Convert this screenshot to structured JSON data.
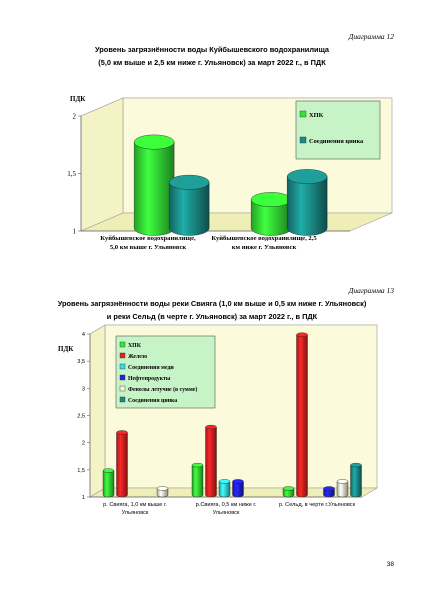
{
  "page_number": "38",
  "chart_data": [
    {
      "type": "bar",
      "label": "Диаграмма 12",
      "title_lines": [
        "Уровень загрязнённости воды Куйбышевского водохранилища",
        "(5,0 км выше и 2,5 км ниже г. Ульяновск) за март 2022 г., в ПДК"
      ],
      "ylabel": "ПДК",
      "ylim": [
        1,
        2
      ],
      "yticks": [
        "1",
        "1,5",
        "2"
      ],
      "categories": [
        [
          "Куйбышевское водохранилище,",
          "5,0 км выше г. Ульяновск"
        ],
        [
          "Куйбышевское водохранилище, 2,5",
          "км ниже г. Ульяновск"
        ]
      ],
      "series": [
        {
          "name": "ХПК",
          "color": "#33e633",
          "values": [
            1.75,
            1.25
          ]
        },
        {
          "name": "Соединения цинка",
          "color": "#1a8a86",
          "values": [
            1.4,
            1.45
          ]
        }
      ],
      "legend_position": "top-right",
      "grid": false
    },
    {
      "type": "bar",
      "label": "Диаграмма 13",
      "title_lines": [
        "Уровень загрязнённости воды реки Свияга (1,0 км выше и 0,5 км ниже г. Ульяновск)",
        "и реки Сельд (в черте г. Ульяновск) за март 2022 г., в ПДК"
      ],
      "ylabel": "ПДК",
      "ylim": [
        1,
        4
      ],
      "yticks": [
        "1",
        "1,5",
        "2",
        "2,5",
        "3",
        "3,5",
        "4"
      ],
      "categories": [
        [
          "р. Свияга, 1,0 км выше г.",
          "Ульяновск"
        ],
        [
          "р.Свияга, 0,5 км ниже    г.",
          "Ульяновск"
        ],
        [
          "р. Сельд, в черте г.Ульяновск",
          ""
        ]
      ],
      "series": [
        {
          "name": "ХПК",
          "color": "#33e633",
          "values": [
            1.45,
            1.55,
            1.12
          ]
        },
        {
          "name": "Железо",
          "color": "#e62020",
          "values": [
            2.15,
            2.25,
            3.95
          ]
        },
        {
          "name": "Соединения меди",
          "color": "#33ddee",
          "values": [
            null,
            1.25,
            null
          ]
        },
        {
          "name": "Нефтепродукты",
          "color": "#2020dd",
          "values": [
            null,
            1.25,
            1.12
          ]
        },
        {
          "name": "Фенолы летучие (в сумме)",
          "color": "#f6f6d0",
          "values": [
            1.12,
            null,
            1.25
          ]
        },
        {
          "name": "Соединения цинка",
          "color": "#1a8a86",
          "values": [
            null,
            null,
            1.55
          ]
        }
      ],
      "legend_position": "top-left",
      "grid": false
    }
  ]
}
